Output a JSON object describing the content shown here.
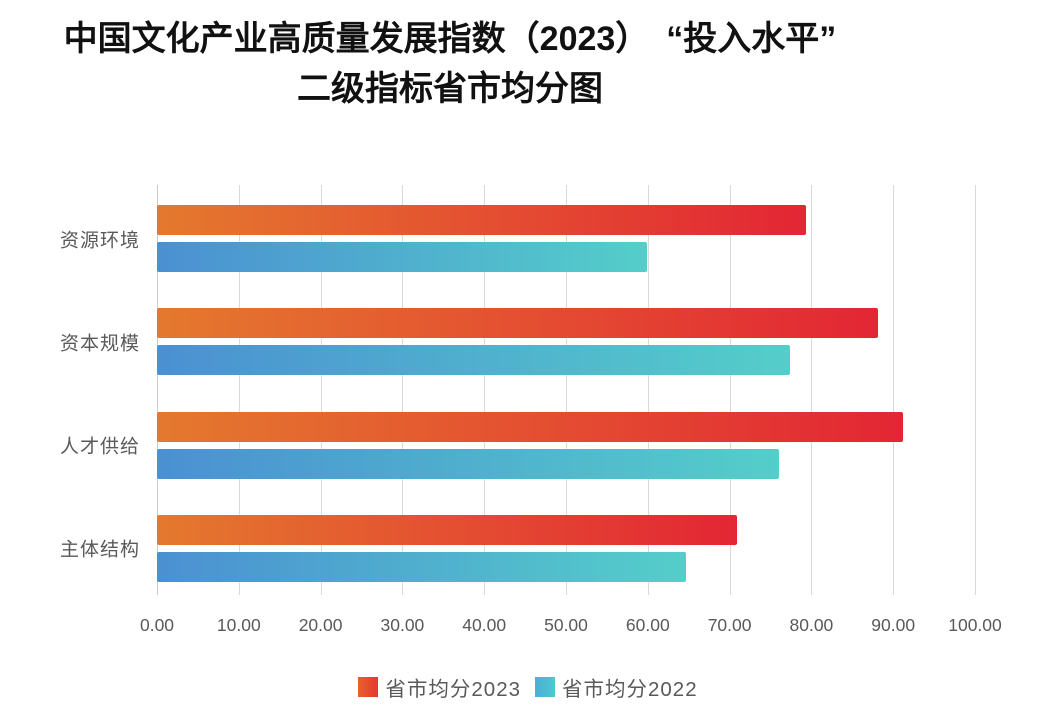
{
  "title": {
    "line1": "中国文化产业高质量发展指数（2023）　“投入水平”",
    "line2": "二级指标省市均分图"
  },
  "chart_data": {
    "type": "bar",
    "orientation": "horizontal",
    "title": "中国文化产业高质量发展指数（2023）“投入水平”二级指标省市均分图",
    "categories": [
      "资源环境",
      "资本规模",
      "人才供给",
      "主体结构"
    ],
    "series": [
      {
        "name": "省市均分2023",
        "values": [
          79.4,
          88.2,
          91.2,
          70.9
        ],
        "color_start": "#E4792E",
        "color_end": "#E32634",
        "legend_color_start": "#E8602C",
        "legend_color_end": "#E33A30"
      },
      {
        "name": "省市均分2022",
        "values": [
          59.9,
          77.4,
          76.1,
          64.7
        ],
        "color_start": "#4B90D2",
        "color_end": "#54CECA",
        "legend_color_start": "#49AFD6",
        "legend_color_end": "#50C8CE"
      }
    ],
    "xlim": [
      0,
      100
    ],
    "x_ticks": [
      "0.00",
      "10.00",
      "20.00",
      "30.00",
      "40.00",
      "50.00",
      "60.00",
      "70.00",
      "80.00",
      "90.00",
      "100.00"
    ],
    "xlabel": "",
    "ylabel": "",
    "grid": true,
    "gridline_color": "#d9d9d9",
    "legend_position": "bottom",
    "text_color": "#595959"
  }
}
